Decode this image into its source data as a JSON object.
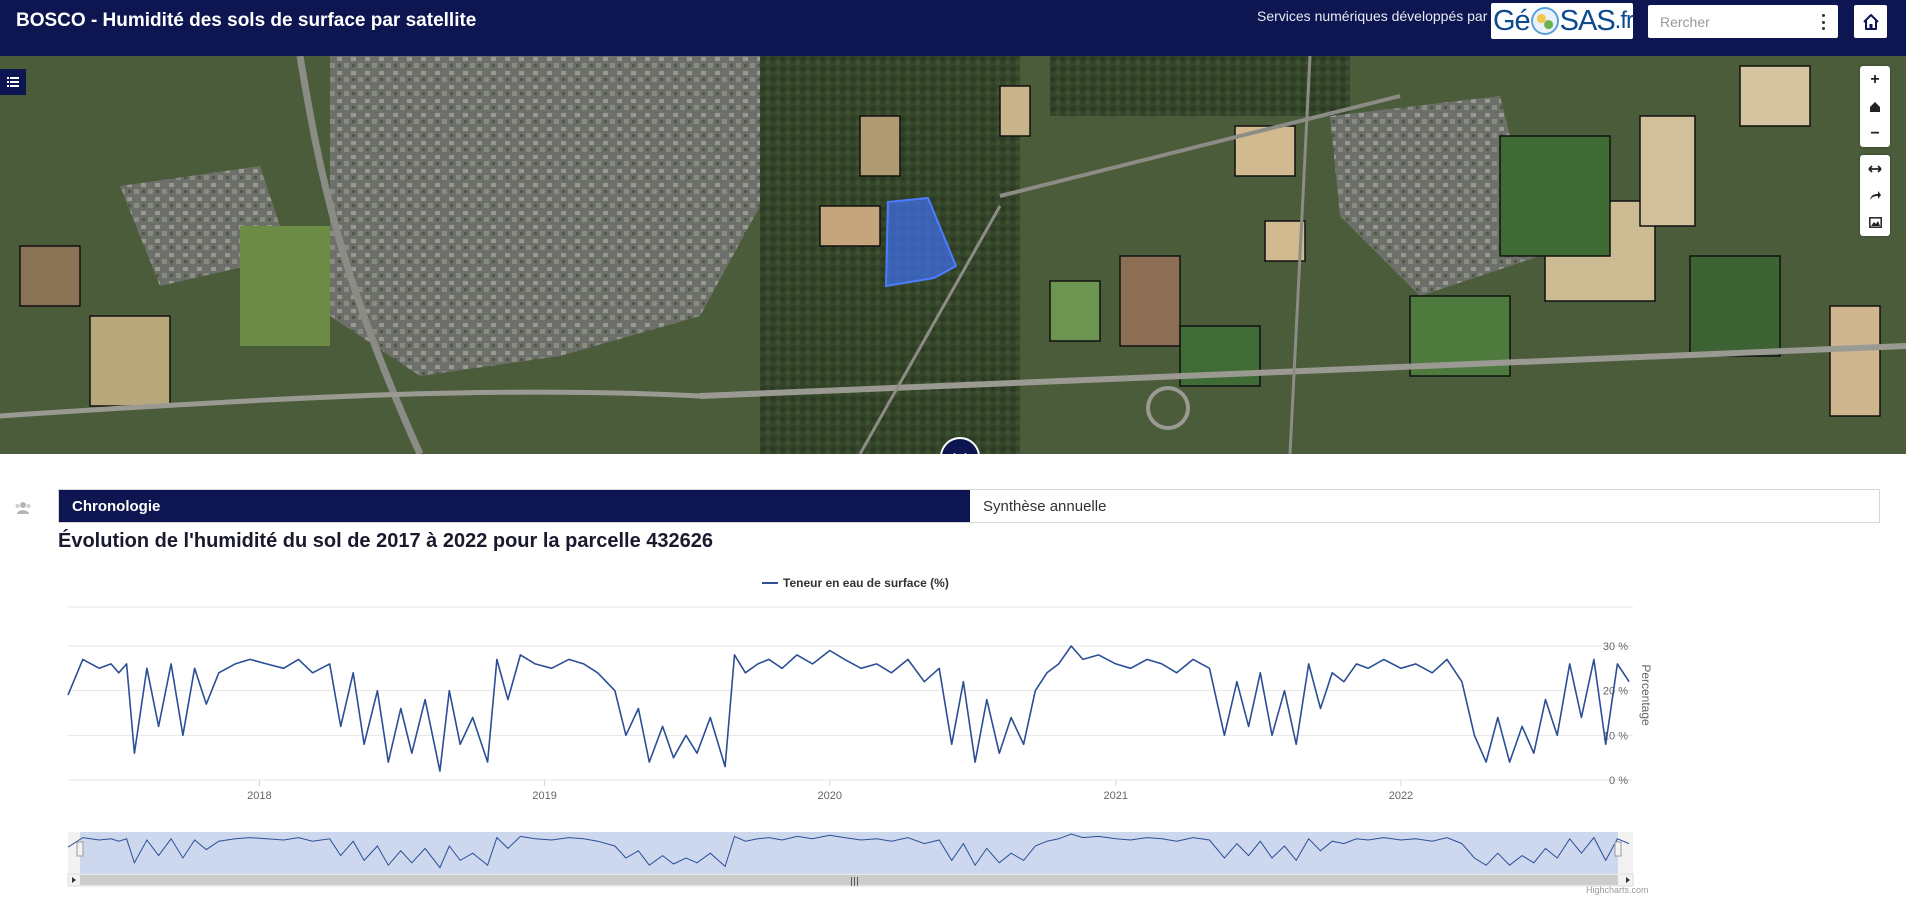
{
  "header": {
    "title": "BOSCO - Humidité des sols de surface par satellite",
    "credit_text": "Services numériques développés par",
    "logo": {
      "part1": "Gé",
      "part2": "SAS",
      "part3": ".fr"
    },
    "search_placeholder": "Rercher"
  },
  "tabs": {
    "chronologie": "Chronologie",
    "synthese": "Synthèse annuelle"
  },
  "chart_title": "Évolution de l'humidité du sol de 2017 à 2022 pour la parcelle 432626",
  "credits": "Highcharts.com",
  "chart_data": {
    "type": "line",
    "legend": "Teneur en eau de surface (%)",
    "ylabel": "Percentage",
    "ylim": [
      0,
      30
    ],
    "y_ticks": [
      "0 %",
      "10 %",
      "20 %",
      "30 %"
    ],
    "x_ticks": [
      "2018",
      "2019",
      "2020",
      "2021",
      "2022"
    ],
    "xlim": [
      "2017-05-01",
      "2022-10-25"
    ],
    "color": "#2b4f96",
    "series": [
      {
        "name": "Teneur en eau de surface (%)",
        "x": [
          "2017-05-01",
          "2017-05-20",
          "2017-06-10",
          "2017-06-25",
          "2017-07-05",
          "2017-07-15",
          "2017-07-25",
          "2017-08-10",
          "2017-08-25",
          "2017-09-10",
          "2017-09-25",
          "2017-10-10",
          "2017-10-25",
          "2017-11-10",
          "2017-12-01",
          "2017-12-20",
          "2018-01-10",
          "2018-02-01",
          "2018-02-20",
          "2018-03-10",
          "2018-04-01",
          "2018-04-15",
          "2018-05-01",
          "2018-05-15",
          "2018-06-01",
          "2018-06-15",
          "2018-07-01",
          "2018-07-15",
          "2018-08-01",
          "2018-08-20",
          "2018-09-01",
          "2018-09-15",
          "2018-10-01",
          "2018-10-20",
          "2018-11-01",
          "2018-11-15",
          "2018-12-01",
          "2018-12-20",
          "2019-01-10",
          "2019-02-01",
          "2019-02-20",
          "2019-03-10",
          "2019-04-01",
          "2019-04-15",
          "2019-05-01",
          "2019-05-15",
          "2019-06-01",
          "2019-06-15",
          "2019-07-01",
          "2019-07-15",
          "2019-08-01",
          "2019-08-20",
          "2019-09-01",
          "2019-09-15",
          "2019-10-01",
          "2019-10-15",
          "2019-11-01",
          "2019-11-20",
          "2019-12-10",
          "2020-01-01",
          "2020-01-20",
          "2020-02-10",
          "2020-03-01",
          "2020-03-20",
          "2020-04-10",
          "2020-05-01",
          "2020-05-20",
          "2020-06-05",
          "2020-06-20",
          "2020-07-05",
          "2020-07-20",
          "2020-08-05",
          "2020-08-20",
          "2020-09-05",
          "2020-09-20",
          "2020-10-05",
          "2020-10-20",
          "2020-11-05",
          "2020-11-20",
          "2020-12-10",
          "2021-01-01",
          "2021-01-20",
          "2021-02-10",
          "2021-03-01",
          "2021-03-20",
          "2021-04-10",
          "2021-05-01",
          "2021-05-20",
          "2021-06-05",
          "2021-06-20",
          "2021-07-05",
          "2021-07-20",
          "2021-08-05",
          "2021-08-20",
          "2021-09-05",
          "2021-09-20",
          "2021-10-05",
          "2021-10-20",
          "2021-11-05",
          "2021-11-20",
          "2021-12-10",
          "2022-01-01",
          "2022-01-20",
          "2022-02-10",
          "2022-03-01",
          "2022-03-20",
          "2022-04-05",
          "2022-04-20",
          "2022-05-05",
          "2022-05-20",
          "2022-06-05",
          "2022-06-20",
          "2022-07-05",
          "2022-07-20",
          "2022-08-05",
          "2022-08-20",
          "2022-09-05",
          "2022-09-20",
          "2022-10-05",
          "2022-10-20"
        ],
        "values": [
          19,
          27,
          25,
          26,
          24,
          26,
          6,
          25,
          12,
          26,
          10,
          25,
          17,
          24,
          26,
          27,
          26,
          25,
          27,
          24,
          26,
          12,
          24,
          8,
          20,
          4,
          16,
          6,
          18,
          2,
          20,
          8,
          14,
          4,
          27,
          18,
          28,
          26,
          25,
          27,
          26,
          24,
          20,
          10,
          16,
          4,
          12,
          5,
          10,
          6,
          14,
          3,
          28,
          24,
          26,
          27,
          25,
          28,
          26,
          29,
          27,
          25,
          26,
          24,
          27,
          22,
          25,
          8,
          22,
          4,
          18,
          6,
          14,
          8,
          20,
          24,
          26,
          30,
          27,
          28,
          26,
          25,
          27,
          26,
          24,
          27,
          25,
          10,
          22,
          12,
          24,
          10,
          20,
          8,
          26,
          16,
          24,
          22,
          26,
          25,
          27,
          25,
          26,
          24,
          27,
          22,
          10,
          4,
          14,
          4,
          12,
          6,
          18,
          10,
          26,
          14,
          27,
          8,
          26,
          22
        ]
      }
    ]
  }
}
